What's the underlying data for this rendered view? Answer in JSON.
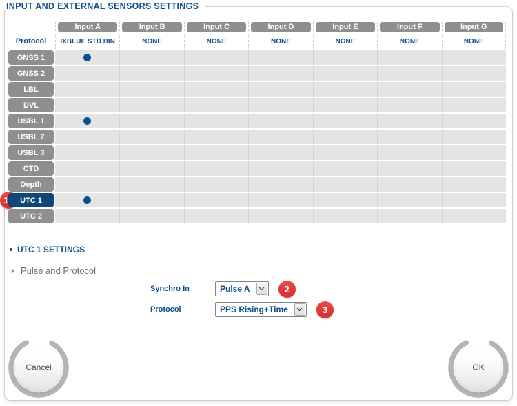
{
  "title": "INPUT AND EXTERNAL SENSORS SETTINGS",
  "matrix": {
    "corner_label": "Protocol",
    "columns": [
      {
        "name": "Input A",
        "protocol": "IXBLUE STD BIN"
      },
      {
        "name": "Input B",
        "protocol": "NONE"
      },
      {
        "name": "Input C",
        "protocol": "NONE"
      },
      {
        "name": "Input D",
        "protocol": "NONE"
      },
      {
        "name": "Input E",
        "protocol": "NONE"
      },
      {
        "name": "Input F",
        "protocol": "NONE"
      },
      {
        "name": "Input G",
        "protocol": "NONE"
      }
    ],
    "rows": [
      {
        "label": "GNSS 1",
        "selected": false,
        "assigned_inputs": [
          "Input A"
        ]
      },
      {
        "label": "GNSS 2",
        "selected": false,
        "assigned_inputs": []
      },
      {
        "label": "LBL",
        "selected": false,
        "assigned_inputs": []
      },
      {
        "label": "DVL",
        "selected": false,
        "assigned_inputs": []
      },
      {
        "label": "USBL 1",
        "selected": false,
        "assigned_inputs": [
          "Input A"
        ]
      },
      {
        "label": "USBL 2",
        "selected": false,
        "assigned_inputs": []
      },
      {
        "label": "USBL 3",
        "selected": false,
        "assigned_inputs": []
      },
      {
        "label": "CTD",
        "selected": false,
        "assigned_inputs": []
      },
      {
        "label": "Depth",
        "selected": false,
        "assigned_inputs": []
      },
      {
        "label": "UTC 1",
        "selected": true,
        "assigned_inputs": [
          "Input A"
        ],
        "callout": "1"
      },
      {
        "label": "UTC 2",
        "selected": false,
        "assigned_inputs": []
      }
    ]
  },
  "settings": {
    "section_title": "UTC 1 SETTINGS",
    "group": {
      "collapse_icon": "▼",
      "title": "Pulse and Protocol",
      "fields": [
        {
          "label": "Synchro In",
          "value": "Pulse A",
          "callout": "2"
        },
        {
          "label": "Protocol",
          "value": "PPS Rising+Time",
          "callout": "3"
        }
      ]
    }
  },
  "footer": {
    "cancel_label": "Cancel",
    "ok_label": "OK"
  },
  "colors": {
    "navy_text": "#114e8e",
    "selected_row": "#114679",
    "tab_gray": "#8f8f8f",
    "cell_bg": "#e4e4e4",
    "cell_divider": "#d2d2d2",
    "badge_red": "#da3434",
    "panel_border": "#cfcfcf",
    "ring_gray": "#b4b4b4"
  }
}
